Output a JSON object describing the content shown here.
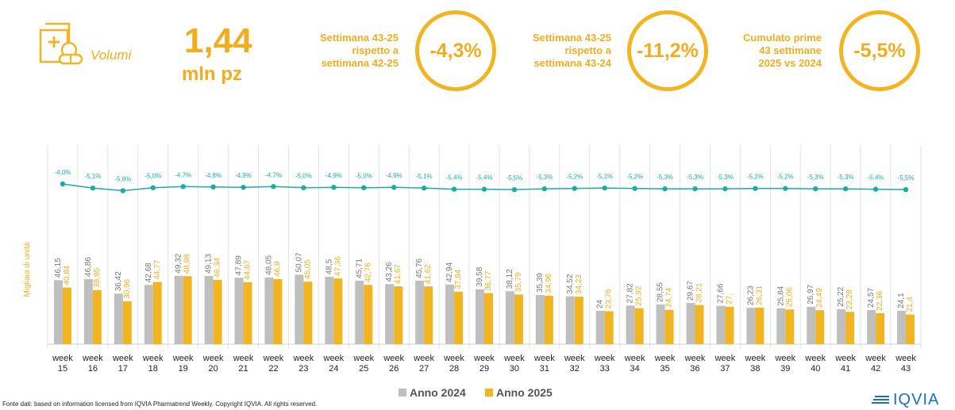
{
  "kpi": {
    "label": "Volumi",
    "value": "1,44",
    "unit": "mln pz",
    "icon": "pill-box-icon"
  },
  "comparisons": [
    {
      "line1": "Settimana 43-25",
      "line2": "rispetto a",
      "line3": "settimana 42-25",
      "value": "-4,3%"
    },
    {
      "line1": "Settimana 43-25",
      "line2": "rispetto a",
      "line3": "settimana 43-24",
      "value": "-11,2%"
    },
    {
      "line1": "Cumulato prime",
      "line2": "43 settimane",
      "line3": "2025 vs 2024",
      "value": "-5,5%"
    }
  ],
  "colors": {
    "accent": "#f2b522",
    "series2024": "#bfbfbf",
    "series2025": "#f2b522",
    "line": "#1aaea2"
  },
  "chart_data": {
    "type": "bar",
    "ylabel": "Migliaia di unità",
    "categories": [
      "week 15",
      "week 16",
      "week 17",
      "week 18",
      "week 19",
      "week 20",
      "week 21",
      "week 22",
      "week 23",
      "week 24",
      "week 25",
      "week 26",
      "week 27",
      "week 28",
      "week 29",
      "week 30",
      "week 31",
      "week 32",
      "week 33",
      "week 34",
      "week 35",
      "week 36",
      "week 37",
      "week 38",
      "week 39",
      "week 40",
      "week 41",
      "week 42",
      "week 43"
    ],
    "series": [
      {
        "name": "Anno 2024",
        "values": [
          "46,15",
          "46,86",
          "36,42",
          "42,68",
          "49,32",
          "49,13",
          "47,89",
          "48,05",
          "50,07",
          "48,5",
          "45,71",
          "43,26",
          "45,76",
          "42,94",
          "39,58",
          "38,12",
          "35,39",
          "34,52",
          "24",
          "27,82",
          "28,55",
          "29,67",
          "27,66",
          "26,23",
          "25,84",
          "26,97",
          "25,22",
          "24,57",
          "24,1"
        ]
      },
      {
        "name": "Anno 2025",
        "values": [
          "40,84",
          "38,95",
          "30,96",
          "44,77",
          "48,98",
          "46,34",
          "44,67",
          "46,9",
          "45,05",
          "47,36",
          "42,76",
          "41,67",
          "41,62",
          "37,84",
          "36,77",
          "35,79",
          "34,96",
          "34,23",
          "23,76",
          "25,92",
          "24,74",
          "28,21",
          "27,",
          "26,31",
          "25,06",
          "24,49",
          "23,28",
          "22,36",
          "21,4"
        ]
      }
    ],
    "line_series": {
      "labels": [
        "-4,0%",
        "-5,1%",
        "-5,8%",
        "-5,0%",
        "-4,7%",
        "-4,8%",
        "-4,9%",
        "-4,7%",
        "-5,0%",
        "-4,9%",
        "-5,0%",
        "-4,9%",
        "-5,1%",
        "-5,4%",
        "-5,4%",
        "-5,5%",
        "-5,3%",
        "-5,2%",
        "-5,1%",
        "-5,2%",
        "-5,3%",
        "-5,3%",
        "-5,3%",
        "-5,2%",
        "-5,2%",
        "-5,3%",
        "-5,3%",
        "-5,4%",
        "-5,5%"
      ],
      "values": [
        -4.0,
        -5.1,
        -5.8,
        -5.0,
        -4.7,
        -4.8,
        -4.9,
        -4.7,
        -5.0,
        -4.9,
        -5.0,
        -4.9,
        -5.1,
        -5.4,
        -5.4,
        -5.5,
        -5.3,
        -5.2,
        -5.1,
        -5.2,
        -5.3,
        -5.3,
        -5.3,
        -5.2,
        -5.2,
        -5.3,
        -5.3,
        -5.4,
        -5.5
      ]
    },
    "legend": [
      "Anno 2024",
      "Anno 2025"
    ]
  },
  "footer": "Fonte dati: based on information licensed from IQVIA Pharmatrend Weekly. Copyright IQVIA. All rights reserved.",
  "logo": "IQVIA"
}
